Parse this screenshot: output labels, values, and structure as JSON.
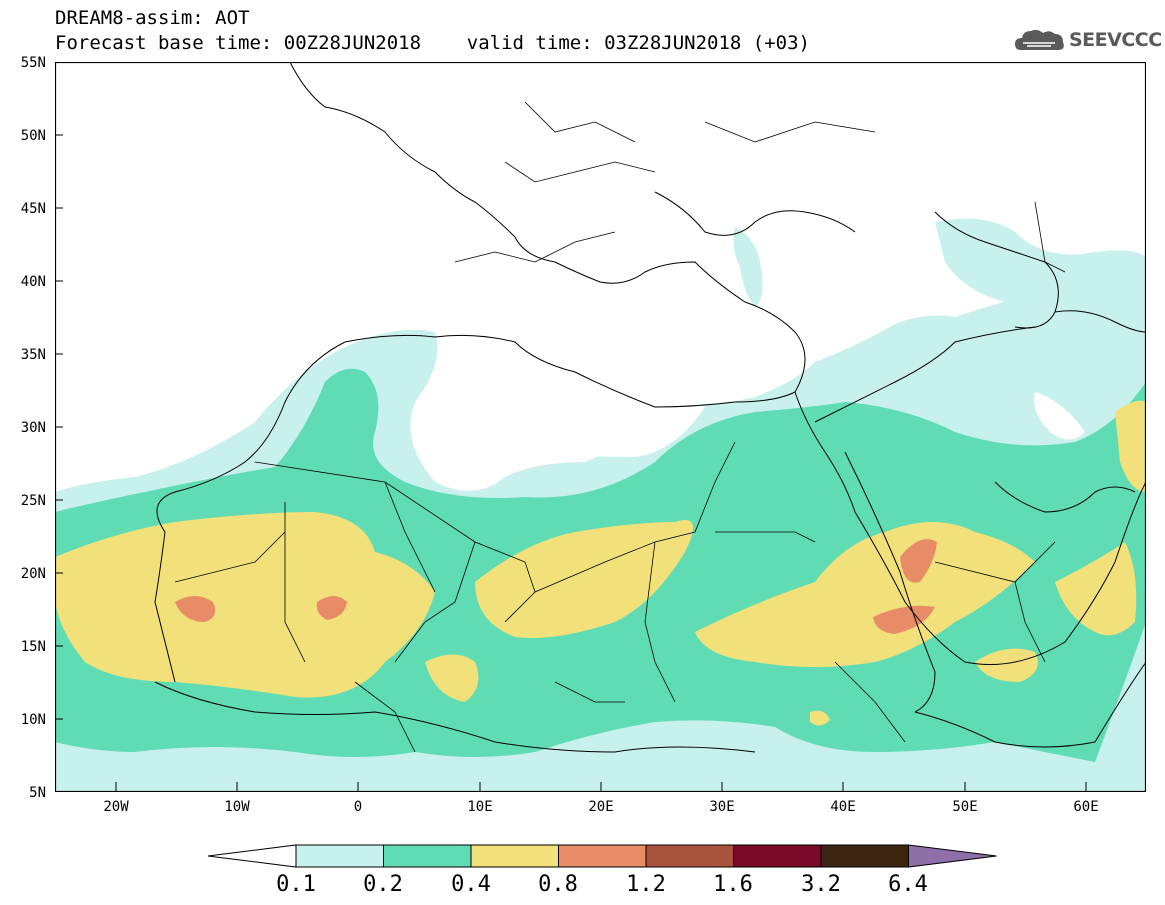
{
  "title": {
    "line1": "DREAM8-assim: AOT",
    "line2": "Forecast base time: 00Z28JUN2018    valid time: 03Z28JUN2018 (+03)"
  },
  "logo": {
    "text": "SEEVCCC",
    "icon": "cloud-icon"
  },
  "map": {
    "lon_range": [
      -25,
      65
    ],
    "lat_range": [
      5,
      55
    ],
    "lat_ticks": [
      "55N",
      "50N",
      "45N",
      "40N",
      "35N",
      "30N",
      "25N",
      "20N",
      "15N",
      "10N",
      "5N"
    ],
    "lon_ticks": [
      "20W",
      "10W",
      "0",
      "10E",
      "20E",
      "30E",
      "40E",
      "50E",
      "60E"
    ]
  },
  "colorbar": {
    "labels": [
      "0.1",
      "0.2",
      "0.4",
      "0.8",
      "1.2",
      "1.6",
      "3.2",
      "6.4"
    ],
    "colors": [
      "#c8f0ec",
      "#5fdcb3",
      "#f2e07a",
      "#e88c68",
      "#a8533e",
      "#7a0a2a",
      "#3d2410",
      "#8f6fa8"
    ]
  }
}
